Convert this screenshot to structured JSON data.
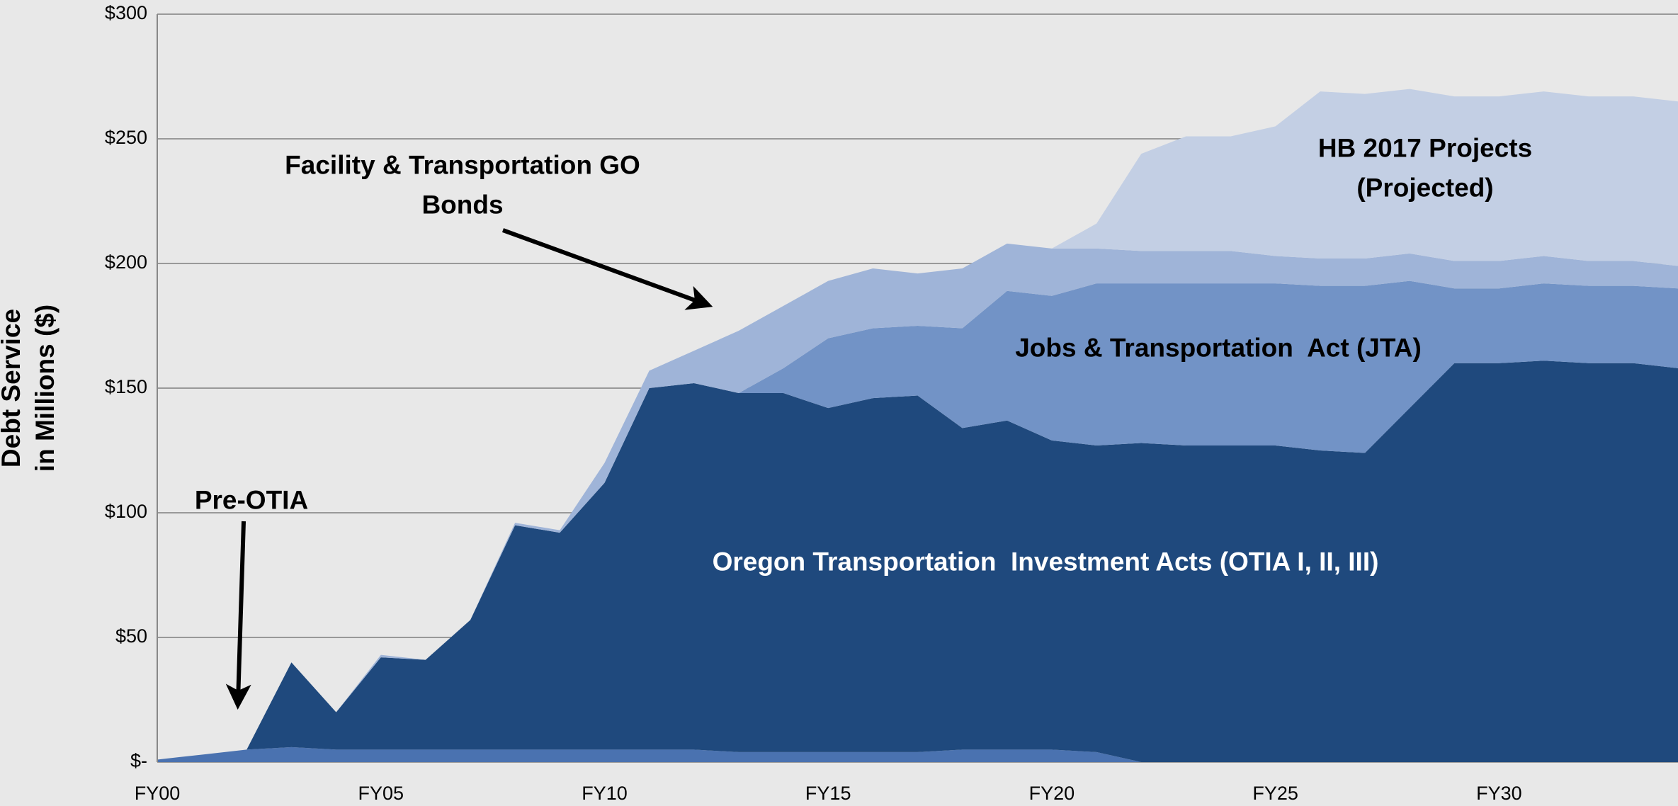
{
  "chart_data": {
    "type": "stacked_area",
    "y_label": [
      "Debt Service",
      "in Millions ($)"
    ],
    "categories": [
      "FY00",
      null,
      null,
      null,
      null,
      "FY05",
      null,
      null,
      null,
      null,
      "FY10",
      null,
      null,
      null,
      null,
      "FY15",
      null,
      null,
      null,
      null,
      "FY20",
      null,
      null,
      null,
      null,
      "FY25",
      null,
      null,
      null,
      null,
      "FY30",
      null,
      null,
      null,
      null
    ],
    "series": [
      {
        "name": "Pre-OTIA",
        "color": "#4a72b0",
        "values": [
          1,
          3,
          5,
          6,
          5,
          5,
          5,
          5,
          5,
          5,
          5,
          5,
          5,
          4,
          4,
          4,
          4,
          4,
          5,
          5,
          5,
          4,
          0,
          0,
          0,
          0,
          0,
          0,
          0,
          0,
          0,
          0,
          0,
          0,
          0
        ]
      },
      {
        "name": "Oregon Transportation  Investment Acts (OTIA I, II, III)",
        "color": "#1f497d",
        "values": [
          0,
          0,
          0,
          34,
          15,
          37,
          36,
          52,
          90,
          87,
          107,
          145,
          147,
          144,
          144,
          138,
          142,
          143,
          129,
          132,
          124,
          123,
          128,
          127,
          127,
          127,
          125,
          124,
          142,
          160,
          160,
          161,
          160,
          160,
          158
        ]
      },
      {
        "name": "Jobs & Transportation  Act (JTA)",
        "color": "#7293c6",
        "values": [
          0,
          0,
          0,
          0,
          0,
          0,
          0,
          0,
          0,
          0,
          0,
          0,
          0,
          0,
          10,
          28,
          28,
          28,
          40,
          52,
          58,
          65,
          64,
          65,
          65,
          65,
          66,
          67,
          51,
          30,
          30,
          31,
          31,
          31,
          32
        ]
      },
      {
        "name": "Facility & Transportation GO Bonds",
        "color": "#9fb4d8",
        "values": [
          0,
          0,
          0,
          0,
          0,
          1,
          0,
          0,
          1,
          1,
          8,
          7,
          13,
          25,
          25,
          23,
          24,
          21,
          24,
          19,
          19,
          14,
          13,
          13,
          13,
          11,
          11,
          11,
          11,
          11,
          11,
          11,
          10,
          10,
          9
        ]
      },
      {
        "name": "HB 2017 Projects (Projected)",
        "color": "#c3cfe4",
        "values": [
          0,
          0,
          0,
          0,
          0,
          0,
          0,
          0,
          0,
          0,
          0,
          0,
          0,
          0,
          0,
          0,
          0,
          0,
          0,
          0,
          0,
          10,
          39,
          46,
          46,
          52,
          67,
          66,
          66,
          66,
          66,
          66,
          66,
          66,
          66
        ]
      }
    ],
    "ylim": [
      0,
      300
    ],
    "yticks": [
      {
        "value": 0,
        "label": "$-"
      },
      {
        "value": 50,
        "label": "$50"
      },
      {
        "value": 100,
        "label": "$100"
      },
      {
        "value": 150,
        "label": "$150"
      },
      {
        "value": 200,
        "label": "$200"
      },
      {
        "value": 250,
        "label": "$250"
      },
      {
        "value": 300,
        "label": "$300"
      }
    ],
    "grid": true
  }
}
